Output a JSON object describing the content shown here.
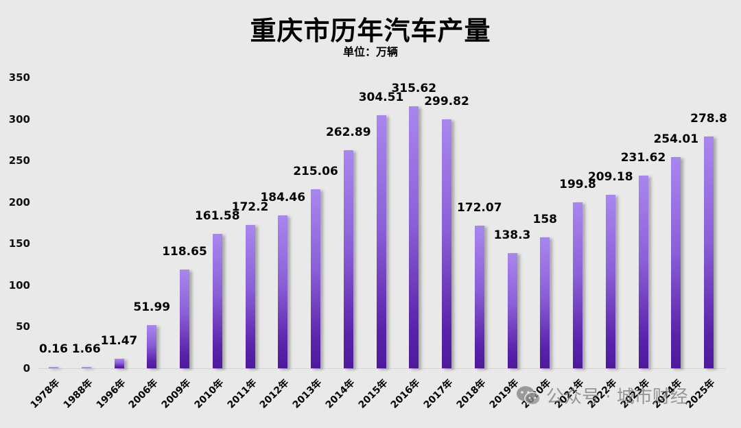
{
  "header": {
    "title": "重庆市历年汽车产量",
    "subtitle": "单位：万辆"
  },
  "watermark": {
    "icon": "wechat-icon",
    "text": "公众号 · 城市财经"
  },
  "colors": {
    "background": "#e9e9e9",
    "bar_top": "#a987ee",
    "bar_bottom": "#4e1a9c",
    "text": "#000000"
  },
  "chart_data": {
    "type": "bar",
    "title": "重庆市历年汽车产量",
    "subtitle": "单位：万辆",
    "xlabel": "",
    "ylabel": "万辆",
    "ylim": [
      0,
      350
    ],
    "yticks": [
      0,
      50,
      100,
      150,
      200,
      250,
      300,
      350
    ],
    "grid": false,
    "legend": null,
    "categories": [
      "1978年",
      "1988年",
      "1996年",
      "2006年",
      "2009年",
      "2010年",
      "2011年",
      "2012年",
      "2013年",
      "2014年",
      "2015年",
      "2016年",
      "2017年",
      "2018年",
      "2019年",
      "2020年",
      "2021年",
      "2022年",
      "2023年",
      "2024年",
      "2025年"
    ],
    "values": [
      0.16,
      1.66,
      11.47,
      51.99,
      118.65,
      161.58,
      172.2,
      184.46,
      215.06,
      262.89,
      304.51,
      315.62,
      299.82,
      172.07,
      138.3,
      158,
      199.8,
      209.18,
      231.62,
      254.01,
      278.8
    ],
    "value_labels": [
      "0.16",
      "1.66",
      "11.47",
      "51.99",
      "118.65",
      "161.58",
      "172.2",
      "184.46",
      "215.06",
      "262.89",
      "304.51",
      "315.62",
      "299.82",
      "172.07",
      "138.3",
      "158",
      "199.8",
      "209.18",
      "231.62",
      "254.01",
      "278.8"
    ]
  }
}
